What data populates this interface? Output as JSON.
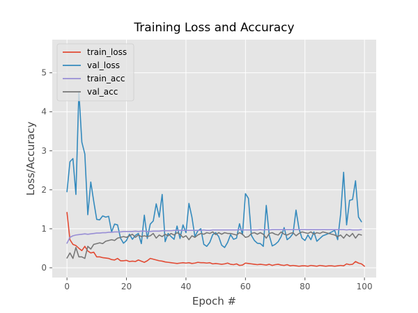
{
  "chart_data": {
    "type": "line",
    "style": "ggplot",
    "title": "Training Loss and Accuracy",
    "xlabel": "Epoch #",
    "ylabel": "Loss/Accuracy",
    "xlim": [
      -4.95,
      103.95
    ],
    "ylim": [
      -0.25,
      5.85
    ],
    "xticks": [
      0,
      20,
      40,
      60,
      80,
      100
    ],
    "yticks": [
      0,
      1,
      2,
      3,
      4,
      5
    ],
    "grid": true,
    "legend_position": "top-left",
    "series": [
      {
        "name": "train_loss",
        "color": "#e24a33",
        "values": [
          1.42,
          0.72,
          0.6,
          0.57,
          0.5,
          0.44,
          0.55,
          0.43,
          0.38,
          0.4,
          0.28,
          0.28,
          0.26,
          0.25,
          0.24,
          0.21,
          0.2,
          0.24,
          0.18,
          0.18,
          0.19,
          0.16,
          0.17,
          0.16,
          0.2,
          0.17,
          0.14,
          0.18,
          0.24,
          0.22,
          0.2,
          0.18,
          0.17,
          0.15,
          0.14,
          0.13,
          0.12,
          0.11,
          0.12,
          0.13,
          0.12,
          0.13,
          0.11,
          0.12,
          0.14,
          0.13,
          0.13,
          0.12,
          0.13,
          0.1,
          0.11,
          0.1,
          0.09,
          0.1,
          0.12,
          0.09,
          0.08,
          0.1,
          0.06,
          0.07,
          0.12,
          0.11,
          0.1,
          0.09,
          0.08,
          0.09,
          0.08,
          0.07,
          0.09,
          0.06,
          0.08,
          0.09,
          0.07,
          0.06,
          0.08,
          0.05,
          0.06,
          0.05,
          0.04,
          0.05,
          0.05,
          0.04,
          0.06,
          0.05,
          0.04,
          0.06,
          0.05,
          0.04,
          0.05,
          0.05,
          0.04,
          0.05,
          0.06,
          0.05,
          0.1,
          0.08,
          0.09,
          0.16,
          0.12,
          0.1,
          0.04
        ]
      },
      {
        "name": "val_loss",
        "color": "#348abd",
        "values": [
          1.95,
          2.72,
          2.8,
          1.88,
          4.52,
          3.22,
          2.92,
          1.36,
          2.2,
          1.7,
          1.24,
          1.23,
          1.33,
          1.3,
          1.32,
          0.92,
          1.12,
          1.1,
          0.76,
          0.63,
          0.7,
          0.86,
          0.73,
          0.83,
          0.88,
          0.62,
          1.35,
          0.75,
          1.12,
          1.2,
          1.64,
          1.3,
          1.88,
          0.67,
          0.88,
          0.8,
          0.73,
          1.07,
          0.75,
          1.1,
          0.9,
          1.65,
          1.3,
          0.8,
          0.95,
          1.0,
          0.6,
          0.55,
          0.65,
          0.85,
          0.9,
          0.8,
          0.58,
          0.52,
          0.65,
          0.85,
          0.73,
          0.76,
          1.13,
          0.85,
          1.9,
          1.78,
          0.83,
          0.7,
          0.63,
          0.62,
          0.55,
          1.6,
          0.83,
          0.56,
          0.6,
          0.67,
          0.8,
          1.03,
          0.72,
          0.78,
          0.88,
          1.48,
          1.0,
          0.76,
          0.7,
          0.84,
          0.72,
          0.92,
          0.68,
          0.75,
          0.82,
          0.85,
          0.88,
          0.92,
          0.96,
          0.72,
          1.38,
          2.45,
          1.1,
          1.73,
          1.75,
          2.23,
          1.3,
          1.18
        ]
      },
      {
        "name": "train_acc",
        "color": "#988ed5",
        "values": [
          0.63,
          0.78,
          0.82,
          0.84,
          0.85,
          0.86,
          0.87,
          0.86,
          0.87,
          0.88,
          0.89,
          0.89,
          0.9,
          0.9,
          0.91,
          0.91,
          0.92,
          0.92,
          0.92,
          0.93,
          0.93,
          0.93,
          0.93,
          0.94,
          0.93,
          0.94,
          0.94,
          0.93,
          0.93,
          0.94,
          0.94,
          0.94,
          0.95,
          0.95,
          0.95,
          0.95,
          0.96,
          0.96,
          0.96,
          0.96,
          0.96,
          0.96,
          0.96,
          0.96,
          0.96,
          0.96,
          0.97,
          0.96,
          0.96,
          0.97,
          0.97,
          0.97,
          0.97,
          0.97,
          0.97,
          0.97,
          0.97,
          0.97,
          0.98,
          0.97,
          0.97,
          0.97,
          0.97,
          0.97,
          0.97,
          0.98,
          0.97,
          0.98,
          0.97,
          0.98,
          0.98,
          0.98,
          0.98,
          0.98,
          0.98,
          0.98,
          0.98,
          0.98,
          0.98,
          0.98,
          0.98,
          0.98,
          0.98,
          0.98,
          0.98,
          0.98,
          0.98,
          0.98,
          0.98,
          0.98,
          0.98,
          0.98,
          0.98,
          0.98,
          0.97,
          0.98,
          0.97,
          0.97,
          0.97,
          0.98
        ]
      },
      {
        "name": "val_acc",
        "color": "#777777",
        "values": [
          0.25,
          0.38,
          0.24,
          0.52,
          0.28,
          0.28,
          0.24,
          0.55,
          0.48,
          0.6,
          0.62,
          0.64,
          0.62,
          0.68,
          0.7,
          0.72,
          0.7,
          0.76,
          0.78,
          0.8,
          0.78,
          0.82,
          0.86,
          0.78,
          0.84,
          0.8,
          0.82,
          0.8,
          0.82,
          0.88,
          0.76,
          0.84,
          0.8,
          0.86,
          0.82,
          0.88,
          0.84,
          0.9,
          0.86,
          0.78,
          0.82,
          0.72,
          0.82,
          0.78,
          0.84,
          0.88,
          0.86,
          0.9,
          0.88,
          0.92,
          0.85,
          0.9,
          0.86,
          0.9,
          0.88,
          0.88,
          0.86,
          0.84,
          0.9,
          0.86,
          0.78,
          0.8,
          0.88,
          0.9,
          0.86,
          0.9,
          0.86,
          0.76,
          0.88,
          0.9,
          0.86,
          0.84,
          0.92,
          0.86,
          0.84,
          0.88,
          0.9,
          0.82,
          0.88,
          0.92,
          0.9,
          0.88,
          0.92,
          0.86,
          0.9,
          0.88,
          0.92,
          0.9,
          0.88,
          0.86,
          0.84,
          0.8,
          0.84,
          0.76,
          0.86,
          0.8,
          0.88,
          0.76,
          0.86,
          0.84
        ]
      }
    ]
  }
}
